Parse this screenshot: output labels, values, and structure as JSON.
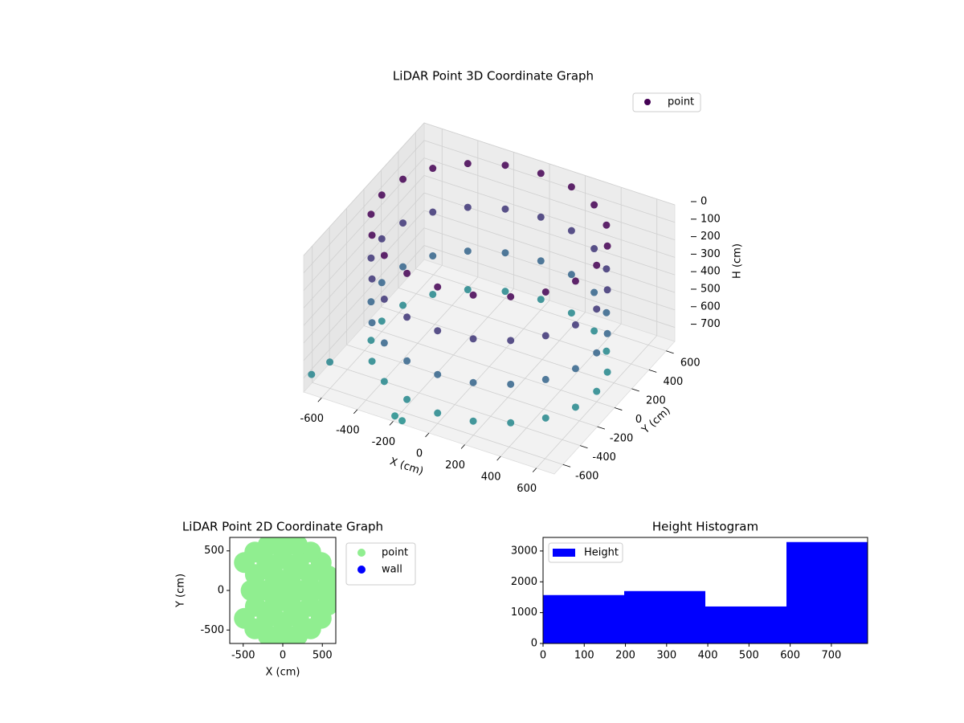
{
  "chart_data": [
    {
      "type": "scatter3d",
      "title": "LiDAR Point 3D Coordinate Graph",
      "xlabel": "X (cm)",
      "ylabel": "Y (cm)",
      "zlabel": "H (cm)",
      "xlim": [
        -700,
        700
      ],
      "ylim": [
        -700,
        700
      ],
      "zlim": [
        780,
        0
      ],
      "xticks": [
        -600,
        -400,
        -200,
        0,
        200,
        400,
        600
      ],
      "yticks": [
        -600,
        -400,
        -200,
        0,
        200,
        400,
        600
      ],
      "zticks": [
        0,
        100,
        200,
        300,
        400,
        500,
        600,
        700
      ],
      "grid": true,
      "legend": "upper right",
      "series": [
        {
          "name": "point",
          "color": "#440154",
          "x": [
            600,
            571,
            485,
            353,
            185,
            0,
            -185,
            -353,
            -485,
            -571,
            -600,
            -571,
            -485,
            -353,
            -185,
            0,
            185,
            353,
            485,
            571,
            600,
            571,
            485,
            353,
            185,
            0,
            -185,
            -353,
            -485,
            -571,
            -600,
            -571,
            -485,
            -353,
            -185,
            0,
            185,
            353,
            485,
            571,
            600,
            571,
            485,
            353,
            185,
            0,
            -185,
            -353,
            -485,
            -571,
            -600,
            -571,
            -485,
            -353,
            -185,
            0,
            185,
            353,
            485,
            571,
            600,
            571,
            485,
            353,
            185,
            0,
            -185,
            -353,
            -485,
            -571,
            -600,
            -571,
            -485,
            -353,
            -185,
            0,
            185,
            353,
            485,
            571,
            -680,
            -650,
            -200,
            -150
          ],
          "y": [
            0,
            185,
            353,
            485,
            571,
            600,
            571,
            485,
            353,
            185,
            0,
            -185,
            -353,
            -485,
            -571,
            -600,
            -571,
            -485,
            -353,
            -185,
            0,
            185,
            353,
            485,
            571,
            600,
            571,
            485,
            353,
            185,
            0,
            -185,
            -353,
            -485,
            -571,
            -600,
            -571,
            -485,
            -353,
            -185,
            0,
            185,
            353,
            485,
            571,
            600,
            571,
            485,
            353,
            185,
            0,
            -185,
            -353,
            -485,
            -571,
            -600,
            -571,
            -485,
            -353,
            -185,
            0,
            185,
            353,
            485,
            571,
            600,
            571,
            485,
            353,
            185,
            0,
            -185,
            -353,
            -485,
            -571,
            -600,
            -571,
            -485,
            -353,
            -185,
            -650,
            -500,
            -680,
            -700
          ],
          "z": [
            0,
            0,
            0,
            0,
            0,
            0,
            0,
            0,
            0,
            0,
            0,
            0,
            0,
            0,
            0,
            0,
            0,
            0,
            0,
            0,
            250,
            250,
            250,
            250,
            250,
            250,
            250,
            250,
            250,
            250,
            250,
            250,
            250,
            250,
            250,
            250,
            250,
            250,
            250,
            250,
            500,
            500,
            500,
            500,
            500,
            500,
            500,
            500,
            500,
            500,
            500,
            500,
            500,
            500,
            500,
            500,
            500,
            500,
            500,
            500,
            720,
            720,
            720,
            720,
            720,
            720,
            720,
            720,
            720,
            720,
            720,
            720,
            720,
            720,
            720,
            720,
            720,
            720,
            720,
            720,
            700,
            700,
            760,
            760
          ]
        }
      ]
    },
    {
      "type": "scatter",
      "title": "LiDAR Point 2D Coordinate Graph",
      "xlabel": "X (cm)",
      "ylabel": "Y (cm)",
      "xlim": [
        -670,
        670
      ],
      "ylim": [
        -670,
        670
      ],
      "xticks": [
        -500,
        0,
        500
      ],
      "yticks": [
        -500,
        0,
        500
      ],
      "legend": "outside right",
      "series": [
        {
          "name": "point",
          "color": "#90ee90",
          "x": [
            600,
            571,
            485,
            353,
            185,
            0,
            -185,
            -353,
            -485,
            -485,
            -353,
            -185,
            0,
            185,
            353,
            485,
            571,
            400,
            346,
            200,
            0,
            -200,
            -346,
            -400,
            -346,
            -200,
            0,
            200,
            346,
            200,
            100,
            -100,
            -200,
            -100,
            100,
            0
          ],
          "y": [
            0,
            185,
            353,
            485,
            571,
            600,
            571,
            485,
            353,
            -353,
            -485,
            -571,
            -600,
            -571,
            -485,
            -353,
            -185,
            0,
            200,
            346,
            400,
            346,
            200,
            0,
            -200,
            -346,
            -400,
            -346,
            -200,
            0,
            173,
            173,
            0,
            -173,
            -173,
            0
          ]
        },
        {
          "name": "wall",
          "color": "#0000ff",
          "x": [],
          "y": []
        }
      ]
    },
    {
      "type": "histogram",
      "title": "Height Histogram",
      "bins": [
        0,
        197,
        394,
        591,
        788
      ],
      "counts": [
        1570,
        1700,
        1200,
        3290
      ],
      "xlim": [
        0,
        788
      ],
      "ylim": [
        0,
        3440
      ],
      "xticks": [
        0,
        100,
        200,
        300,
        400,
        500,
        600,
        700
      ],
      "yticks": [
        0,
        1000,
        2000,
        3000
      ],
      "legend": "upper left",
      "series_name": "Height",
      "color": "#0000ff"
    }
  ]
}
